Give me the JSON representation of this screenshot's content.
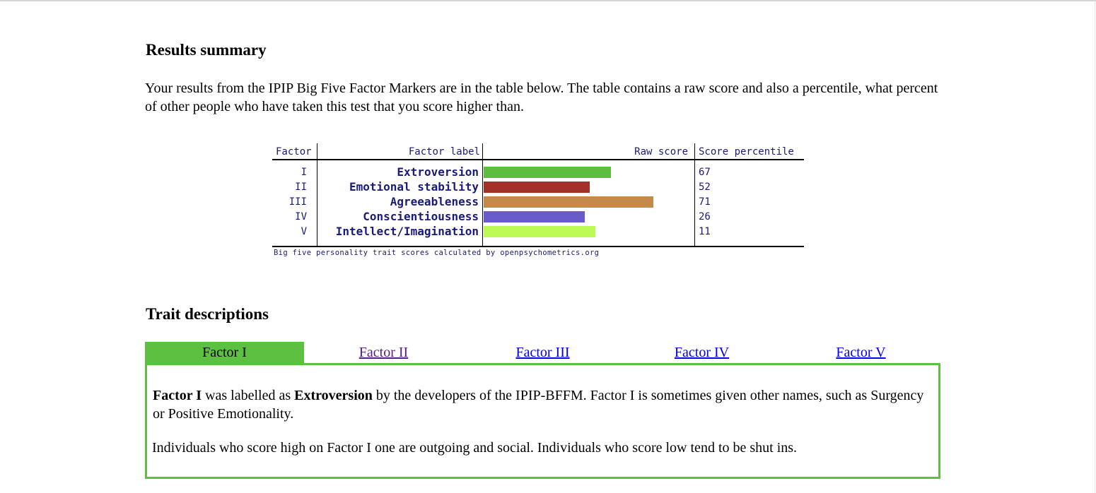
{
  "results_summary": {
    "heading": "Results summary",
    "intro": "Your results from the IPIP Big Five Factor Markers are in the table below. The table contains a raw score and also a percentile, what percent of other people who have taken this test that you score higher than."
  },
  "score_table": {
    "headers": {
      "factor": "Factor",
      "label": "Factor label",
      "raw": "Raw score",
      "percentile": "Score percentile"
    },
    "rows": [
      {
        "factor": "I",
        "label": "Extroversion",
        "raw_fraction": 0.6,
        "percentile": "67",
        "color": "#5cbd3f"
      },
      {
        "factor": "II",
        "label": "Emotional stability",
        "raw_fraction": 0.5,
        "percentile": "52",
        "color": "#a2312a"
      },
      {
        "factor": "III",
        "label": "Agreeableness",
        "raw_fraction": 0.8,
        "percentile": "71",
        "color": "#c58a4b"
      },
      {
        "factor": "IV",
        "label": "Conscientiousness",
        "raw_fraction": 0.477,
        "percentile": "26",
        "color": "#6a5bcb"
      },
      {
        "factor": "V",
        "label": "Intellect/Imagination",
        "raw_fraction": 0.527,
        "percentile": "11",
        "color": "#bdfa56"
      }
    ],
    "caption": "Big five personality trait scores calculated by openpsychometrics.org"
  },
  "trait_descriptions": {
    "heading": "Trait descriptions",
    "tabs": [
      {
        "label": "Factor I",
        "state": "active"
      },
      {
        "label": "Factor II",
        "state": "visited"
      },
      {
        "label": "Factor III",
        "state": "link"
      },
      {
        "label": "Factor IV",
        "state": "link"
      },
      {
        "label": "Factor V",
        "state": "link"
      }
    ],
    "panel": {
      "p1_factor": "Factor I",
      "p1_text1": " was labelled as ",
      "p1_trait": "Extroversion",
      "p1_text2": " by the developers of the IPIP-BFFM. Factor I is sometimes given other names, such as Surgency or Positive Emotionality.",
      "p2": "Individuals who score high on Factor I one are outgoing and social. Individuals who score low tend to be shut ins."
    },
    "accent_color": "#5ec041",
    "link_color": "#0000ee",
    "visited_link_color": "#551a8b"
  }
}
